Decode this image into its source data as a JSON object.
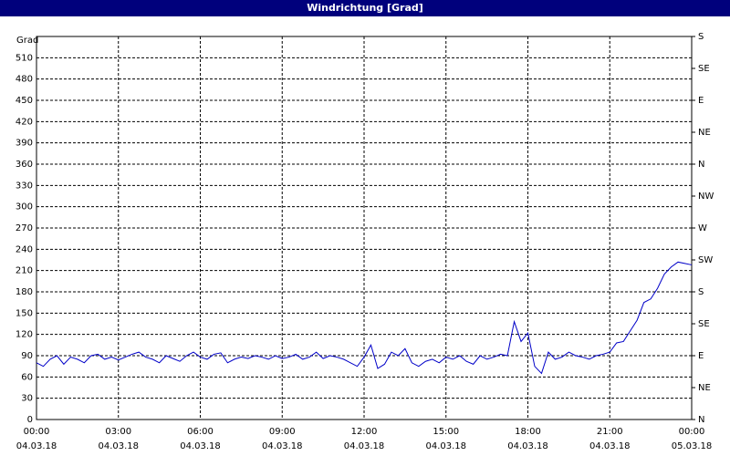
{
  "chart_data": {
    "type": "line",
    "title": "Windrichtung [Grad]",
    "y_label": "Grad",
    "x": [
      0,
      0.25,
      0.5,
      0.75,
      1,
      1.25,
      1.5,
      1.75,
      2,
      2.25,
      2.5,
      2.75,
      3,
      3.25,
      3.5,
      3.75,
      4,
      4.25,
      4.5,
      4.75,
      5,
      5.25,
      5.5,
      5.75,
      6,
      6.25,
      6.5,
      6.75,
      7,
      7.25,
      7.5,
      7.75,
      8,
      8.25,
      8.5,
      8.75,
      9,
      9.25,
      9.5,
      9.75,
      10,
      10.25,
      10.5,
      10.75,
      11,
      11.25,
      11.5,
      11.75,
      12,
      12.25,
      12.5,
      12.75,
      13,
      13.25,
      13.5,
      13.75,
      14,
      14.25,
      14.5,
      14.75,
      15,
      15.25,
      15.5,
      15.75,
      16,
      16.25,
      16.5,
      16.75,
      17,
      17.25,
      17.5,
      17.75,
      18,
      18.25,
      18.5,
      18.75,
      19,
      19.25,
      19.5,
      19.75,
      20,
      20.25,
      20.5,
      20.75,
      21,
      21.25,
      21.5,
      21.75,
      22,
      22.25,
      22.5,
      22.75,
      23,
      23.25,
      23.5,
      23.75,
      24
    ],
    "series": [
      {
        "name": "Windrichtung",
        "color": "#0000c8",
        "values": [
          80,
          75,
          85,
          90,
          78,
          88,
          85,
          80,
          90,
          92,
          85,
          88,
          84,
          88,
          92,
          95,
          88,
          85,
          80,
          90,
          86,
          82,
          90,
          95,
          88,
          85,
          92,
          94,
          80,
          85,
          88,
          86,
          90,
          88,
          85,
          90,
          86,
          88,
          92,
          85,
          88,
          95,
          86,
          90,
          88,
          85,
          80,
          75,
          88,
          105,
          72,
          78,
          95,
          90,
          100,
          80,
          75,
          82,
          85,
          80,
          88,
          85,
          90,
          82,
          78,
          90,
          85,
          88,
          92,
          90,
          138,
          110,
          122,
          75,
          65,
          95,
          85,
          88,
          95,
          90,
          88,
          85,
          90,
          92,
          95,
          108,
          110,
          125,
          140,
          165,
          170,
          185,
          205,
          215,
          222,
          220,
          218
        ]
      }
    ],
    "xlim": [
      0,
      24
    ],
    "xticks": [
      {
        "value": 0,
        "label": "00:00",
        "date": "04.03.18"
      },
      {
        "value": 3,
        "label": "03:00",
        "date": "04.03.18"
      },
      {
        "value": 6,
        "label": "06:00",
        "date": "04.03.18"
      },
      {
        "value": 9,
        "label": "09:00",
        "date": "04.03.18"
      },
      {
        "value": 12,
        "label": "12:00",
        "date": "04.03.18"
      },
      {
        "value": 15,
        "label": "15:00",
        "date": "04.03.18"
      },
      {
        "value": 18,
        "label": "18:00",
        "date": "04.03.18"
      },
      {
        "value": 21,
        "label": "21:00",
        "date": "04.03.18"
      },
      {
        "value": 24,
        "label": "00:00",
        "date": "05.03.18"
      }
    ],
    "ylim": [
      0,
      540
    ],
    "yticks": [
      0,
      30,
      60,
      90,
      120,
      150,
      180,
      210,
      240,
      270,
      300,
      330,
      360,
      390,
      420,
      450,
      480,
      510
    ],
    "y2lim": [
      0,
      540
    ],
    "y2ticks": [
      {
        "value": 0,
        "label": "N"
      },
      {
        "value": 45,
        "label": "NE"
      },
      {
        "value": 90,
        "label": "E"
      },
      {
        "value": 135,
        "label": "SE"
      },
      {
        "value": 180,
        "label": "S"
      },
      {
        "value": 225,
        "label": "SW"
      },
      {
        "value": 270,
        "label": "W"
      },
      {
        "value": 315,
        "label": "NW"
      },
      {
        "value": 360,
        "label": "N"
      },
      {
        "value": 405,
        "label": "NE"
      },
      {
        "value": 450,
        "label": "E"
      },
      {
        "value": 495,
        "label": "SE"
      },
      {
        "value": 540,
        "label": "S"
      }
    ],
    "grid": true
  }
}
